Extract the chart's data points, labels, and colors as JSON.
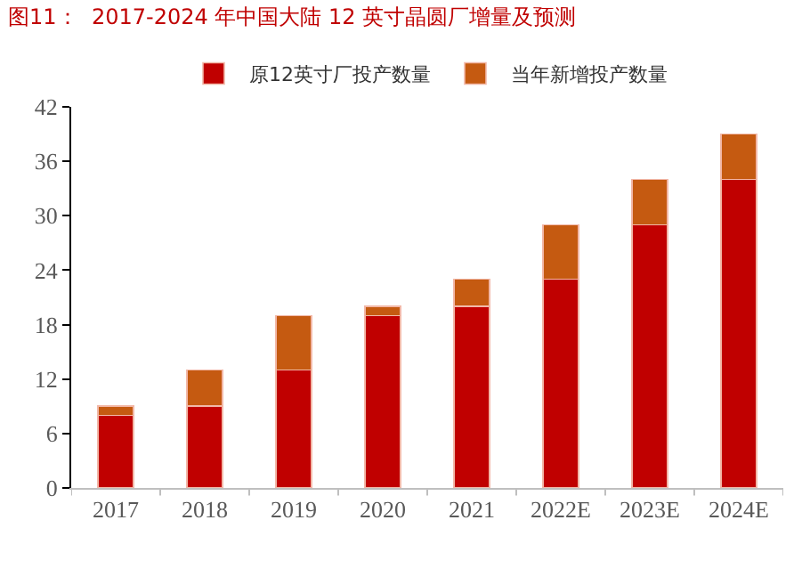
{
  "chart_data": {
    "type": "bar",
    "title": "图11：  2017-2024 年中国大陆 12 英寸晶圆厂增量及预测",
    "categories": [
      "2017",
      "2018",
      "2019",
      "2020",
      "2021",
      "2022E",
      "2023E",
      "2024E"
    ],
    "series": [
      {
        "name": "原12英寸厂投产数量",
        "color": "#c00000",
        "values": [
          8,
          9,
          13,
          19,
          20,
          23,
          29,
          34
        ]
      },
      {
        "name": "当年新增投产数量",
        "color": "#c55a11",
        "values": [
          1,
          4,
          6,
          1,
          3,
          6,
          5,
          5
        ]
      }
    ],
    "stacked": true,
    "ylim": [
      0,
      42
    ],
    "yticks": [
      0,
      6,
      12,
      18,
      24,
      30,
      36,
      42
    ],
    "legend": "top"
  }
}
